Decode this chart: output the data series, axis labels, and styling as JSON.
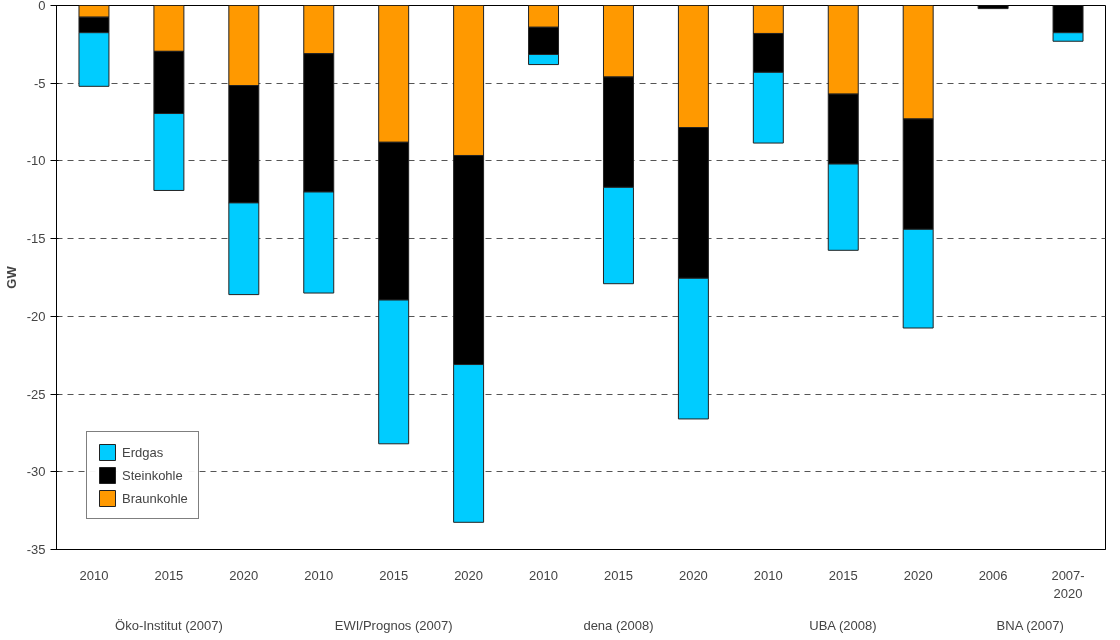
{
  "chart_data": {
    "type": "bar",
    "stacked": true,
    "ylabel": "GW",
    "categories": [
      "2010",
      "2015",
      "2020",
      "2010",
      "2015",
      "2020",
      "2010",
      "2015",
      "2020",
      "2010",
      "2015",
      "2020",
      "2006",
      "2007-2020"
    ],
    "series": [
      {
        "name": "Braunkohle",
        "color": "#ff9900",
        "values": [
          -0.75,
          -2.95,
          -5.15,
          -3.1,
          -8.8,
          -9.65,
          -1.4,
          -4.6,
          -7.85,
          -1.8,
          -5.7,
          -7.3,
          null,
          null
        ]
      },
      {
        "name": "Steinkohle",
        "color": "#000000",
        "values": [
          -1.0,
          -4.0,
          -7.55,
          -8.9,
          -10.15,
          -13.45,
          -1.75,
          -7.1,
          -9.7,
          -2.5,
          -4.5,
          -7.1,
          -0.2,
          -1.75
        ]
      },
      {
        "name": "Erdgas",
        "color": "#00ccff",
        "values": [
          -3.45,
          -4.95,
          -5.9,
          -6.5,
          -9.25,
          -10.15,
          -0.65,
          -6.2,
          -9.05,
          -4.55,
          -5.55,
          -6.35,
          null,
          -0.55
        ]
      }
    ],
    "ylim": [
      -35,
      0
    ],
    "yticks": [
      -35,
      -30,
      -25,
      -20,
      -15,
      -10,
      -5,
      0
    ],
    "grid": "y",
    "legend": "bottom left",
    "annotations": [
      "Öko-Institut (2007)",
      "EWI/Prognos (2007)",
      "dena (2008)",
      "UBA (2008)",
      "BNA (2007)"
    ]
  }
}
